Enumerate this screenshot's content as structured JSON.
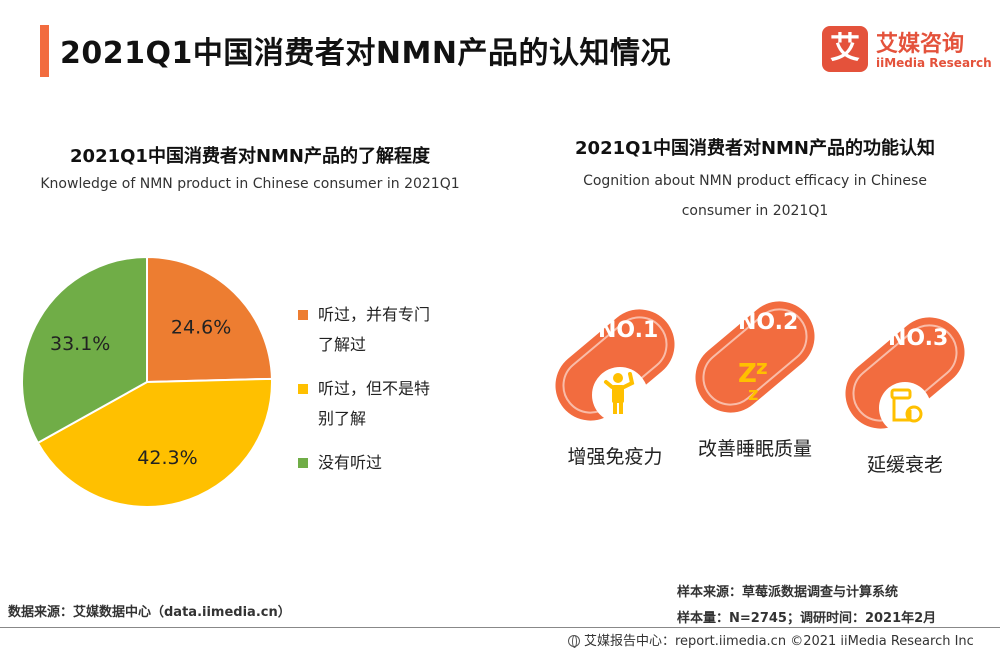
{
  "header": {
    "title": "2021Q1中国消费者对NMN产品的认知情况",
    "accent_color": "#F26C3F"
  },
  "logo": {
    "mark": "艾",
    "name_cn": "艾媒咨询",
    "name_en": "iiMedia Research",
    "brand_color": "#E4523B"
  },
  "chart_data": [
    {
      "type": "pie",
      "title": "2021Q1中国消费者对NMN产品的了解程度",
      "subtitle": "Knowledge of NMN product in Chinese consumer in 2021Q1",
      "categories": [
        "听过，并有专门了解过",
        "听过，但不是特别了解",
        "没有听过"
      ],
      "legend_lines": [
        [
          "听过，并有专门",
          "了解过"
        ],
        [
          "听过，但不是特",
          "别了解"
        ],
        [
          "没有听过"
        ]
      ],
      "values": [
        24.6,
        42.3,
        33.1
      ],
      "labels": [
        "24.6%",
        "42.3%",
        "33.1%"
      ],
      "colors": [
        "#ED7D31",
        "#FFC000",
        "#70AD47"
      ],
      "legend": "right"
    },
    {
      "type": "table",
      "title": "2021Q1中国消费者对NMN产品的功能认知",
      "subtitle_lines": [
        "Cognition about NMN product efficacy in Chinese",
        "consumer in 2021Q1"
      ],
      "ranks": [
        {
          "badge": "NO.1",
          "label": "增强免疫力",
          "icon": "strong-person-icon"
        },
        {
          "badge": "NO.2",
          "label": "改善睡眠质量",
          "icon": "sleep-zzz-icon"
        },
        {
          "badge": "NO.3",
          "label": "延缓衰老",
          "icon": "hourglass-icon"
        }
      ],
      "card_color": "#F26C3F",
      "icon_color": "#FFC000"
    }
  ],
  "footer": {
    "data_source": "数据来源：艾媒数据中心（data.iimedia.cn）",
    "sample_source": "样本来源：草莓派数据调查与计算系统",
    "sample_info": "样本量：N=2745；调研时间：2021年2月",
    "copyright": "艾媒报告中心：report.iimedia.cn  ©2021  iiMedia Research  Inc"
  }
}
